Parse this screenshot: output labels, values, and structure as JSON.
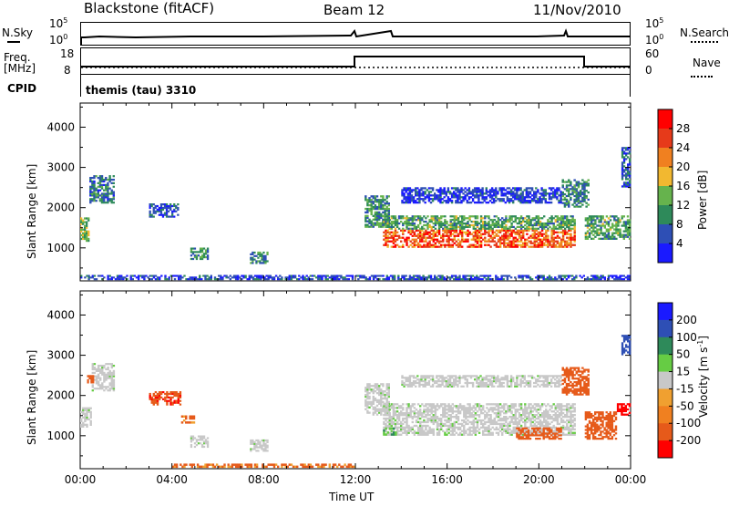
{
  "header": {
    "station": "Blackstone (fitACF)",
    "beam": "Beam 12",
    "date": "11/Nov/2010"
  },
  "strip": {
    "nsky_label": "N.Sky",
    "nsky_top": "10^5",
    "nsky_bottom": "10^0",
    "nsearch_label": "N.Search",
    "nsearch_top": "10^5",
    "nsearch_bottom": "10^0",
    "freq_label": "Freq.",
    "freq_unit": "[MHz]",
    "freq_top": "18",
    "freq_bottom": "8",
    "nave_label": "Nave",
    "nave_top": "60",
    "nave_bottom": "0",
    "cpid_label": "CPID",
    "cpid_value": "themis (tau) 3310"
  },
  "colors": {
    "power_scale": [
      "#1a1aff",
      "#2e4fb5",
      "#2e8a5a",
      "#66b34d",
      "#f2b830",
      "#f08020",
      "#e63a1a",
      "#ff0000"
    ],
    "velocity_scale": [
      "#ff0000",
      "#e65a1a",
      "#f0a030",
      "#c8c8c8",
      "#66cc44",
      "#2e8a5a",
      "#2e4fb5",
      "#1a1aff"
    ],
    "ground_gray": "#c8c8c8"
  },
  "chart_data": [
    {
      "type": "heatmap",
      "title": "",
      "xlabel": "Time UT",
      "ylabel": "Slant Range [km]",
      "xlim": [
        "00:00",
        "24:00"
      ],
      "ylim": [
        180,
        4600
      ],
      "x_ticks": [
        "00:00",
        "04:00",
        "08:00",
        "12:00",
        "16:00",
        "20:00",
        "00:00"
      ],
      "y_ticks": [
        "1000",
        "2000",
        "3000",
        "4000"
      ],
      "colorbar": {
        "label": "Power [dB]",
        "ticks": [
          "4",
          "8",
          "12",
          "16",
          "20",
          "24",
          "28"
        ],
        "range": [
          0,
          32
        ]
      },
      "patches": [
        {
          "t": [
            0.0,
            0.4
          ],
          "r": [
            1150,
            1750
          ],
          "v": 14
        },
        {
          "t": [
            0.4,
            1.5
          ],
          "r": [
            2100,
            2800
          ],
          "v": 8
        },
        {
          "t": [
            3.0,
            4.3
          ],
          "r": [
            1750,
            2100
          ],
          "v": 5
        },
        {
          "t": [
            4.8,
            5.6
          ],
          "r": [
            700,
            1000
          ],
          "v": 9
        },
        {
          "t": [
            7.4,
            8.2
          ],
          "r": [
            600,
            900
          ],
          "v": 9
        },
        {
          "t": [
            12.4,
            13.5
          ],
          "r": [
            1500,
            2300
          ],
          "v": 10
        },
        {
          "t": [
            13.2,
            21.6
          ],
          "r": [
            1000,
            1450
          ],
          "v": 26
        },
        {
          "t": [
            13.2,
            21.6
          ],
          "r": [
            1450,
            1800
          ],
          "v": 12
        },
        {
          "t": [
            14.0,
            21.0
          ],
          "r": [
            2100,
            2500
          ],
          "v": 4
        },
        {
          "t": [
            21.0,
            22.2
          ],
          "r": [
            2000,
            2700
          ],
          "v": 9
        },
        {
          "t": [
            22.0,
            24.0
          ],
          "r": [
            1200,
            1800
          ],
          "v": 12
        },
        {
          "t": [
            23.6,
            24.0
          ],
          "r": [
            2500,
            3500
          ],
          "v": 6
        },
        {
          "t": [
            0.0,
            24.0
          ],
          "r": [
            200,
            320
          ],
          "v": 5
        }
      ]
    },
    {
      "type": "heatmap",
      "title": "",
      "xlabel": "Time UT",
      "ylabel": "Slant Range [km]",
      "xlim": [
        "00:00",
        "24:00"
      ],
      "ylim": [
        180,
        4600
      ],
      "x_ticks": [
        "00:00",
        "04:00",
        "08:00",
        "12:00",
        "16:00",
        "20:00",
        "00:00"
      ],
      "y_ticks": [
        "1000",
        "2000",
        "3000",
        "4000"
      ],
      "colorbar": {
        "label": "Velocity [m s^-1]",
        "ticks": [
          "200",
          "100",
          "50",
          "15",
          "-15",
          "-50",
          "-100",
          "-200"
        ],
        "range": [
          -250,
          250
        ]
      },
      "patches": [
        {
          "t": [
            0.0,
            0.5
          ],
          "r": [
            1200,
            1700
          ],
          "v": 0,
          "gs": true
        },
        {
          "t": [
            0.5,
            1.5
          ],
          "r": [
            2100,
            2800
          ],
          "v": 0,
          "gs": true
        },
        {
          "t": [
            0.3,
            0.6
          ],
          "r": [
            2300,
            2500
          ],
          "v": -80
        },
        {
          "t": [
            3.0,
            4.4
          ],
          "r": [
            1750,
            2100
          ],
          "v": -90
        },
        {
          "t": [
            4.4,
            5.0
          ],
          "r": [
            1300,
            1500
          ],
          "v": -60
        },
        {
          "t": [
            4.8,
            5.6
          ],
          "r": [
            700,
            1000
          ],
          "v": 0,
          "gs": true
        },
        {
          "t": [
            7.4,
            8.2
          ],
          "r": [
            600,
            900
          ],
          "v": 0,
          "gs": true
        },
        {
          "t": [
            4.0,
            12.0
          ],
          "r": [
            200,
            300
          ],
          "v": -60
        },
        {
          "t": [
            12.4,
            13.5
          ],
          "r": [
            1500,
            2300
          ],
          "v": 0,
          "gs": true
        },
        {
          "t": [
            13.2,
            21.6
          ],
          "r": [
            1000,
            1800
          ],
          "v": 0,
          "gs": true
        },
        {
          "t": [
            13.2,
            13.8
          ],
          "r": [
            1000,
            1200
          ],
          "v": 40
        },
        {
          "t": [
            19.0,
            21.0
          ],
          "r": [
            900,
            1200
          ],
          "v": -70
        },
        {
          "t": [
            14.0,
            21.0
          ],
          "r": [
            2200,
            2500
          ],
          "v": 0,
          "gs": true
        },
        {
          "t": [
            21.0,
            22.2
          ],
          "r": [
            2000,
            2700
          ],
          "v": -80
        },
        {
          "t": [
            22.0,
            23.4
          ],
          "r": [
            900,
            1600
          ],
          "v": -70
        },
        {
          "t": [
            23.4,
            24.0
          ],
          "r": [
            1500,
            1800
          ],
          "v": -220
        },
        {
          "t": [
            23.6,
            24.0
          ],
          "r": [
            3000,
            3500
          ],
          "v": 180
        }
      ]
    }
  ]
}
